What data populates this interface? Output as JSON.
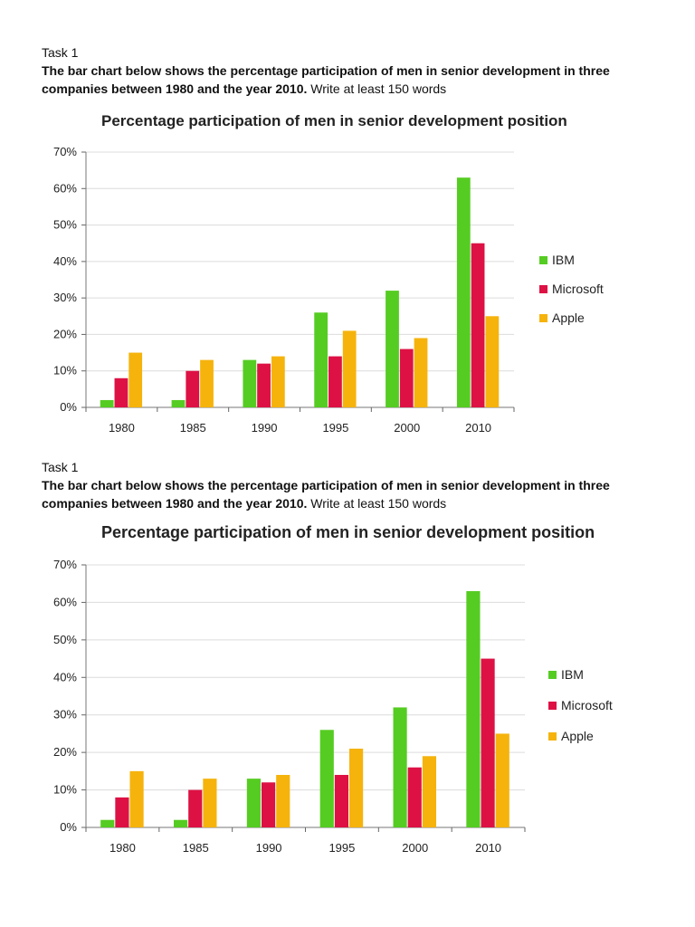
{
  "tasks": [
    {
      "label": "Task 1",
      "prompt_bold": "The bar chart below shows the percentage participation of men in senior development in three companies between 1980 and the year 2010.",
      "prompt_rest": " Write at least 150 words"
    },
    {
      "label": "Task 1",
      "prompt_bold": "The bar chart below shows the percentage participation of men in senior development in three companies between 1980 and the year 2010.",
      "prompt_rest": " Write at least 150 words"
    }
  ],
  "chart_data": [
    {
      "type": "bar",
      "title": "Percentage participation of men in senior development position",
      "categories": [
        "1980",
        "1985",
        "1990",
        "1995",
        "2000",
        "2010"
      ],
      "series": [
        {
          "name": "IBM",
          "color": "#55cc22",
          "values": [
            2,
            2,
            13,
            26,
            32,
            63
          ]
        },
        {
          "name": "Microsoft",
          "color": "#dd1144",
          "values": [
            8,
            10,
            12,
            14,
            16,
            45
          ]
        },
        {
          "name": "Apple",
          "color": "#f5b30c",
          "values": [
            15,
            13,
            14,
            21,
            19,
            25
          ]
        }
      ],
      "yticks": [
        "0%",
        "10%",
        "20%",
        "30%",
        "40%",
        "50%",
        "60%",
        "70%"
      ],
      "ylim": [
        0,
        70
      ],
      "grid": true,
      "legend": "right"
    },
    {
      "type": "bar",
      "title": "Percentage participation of men in senior development position",
      "categories": [
        "1980",
        "1985",
        "1990",
        "1995",
        "2000",
        "2010"
      ],
      "series": [
        {
          "name": "IBM",
          "color": "#55cc22",
          "values": [
            2,
            2,
            13,
            26,
            32,
            63
          ]
        },
        {
          "name": "Microsoft",
          "color": "#dd1144",
          "values": [
            8,
            10,
            12,
            14,
            16,
            45
          ]
        },
        {
          "name": "Apple",
          "color": "#f5b30c",
          "values": [
            15,
            13,
            14,
            21,
            19,
            25
          ]
        }
      ],
      "yticks": [
        "0%",
        "10%",
        "20%",
        "30%",
        "40%",
        "50%",
        "60%",
        "70%"
      ],
      "ylim": [
        0,
        70
      ],
      "grid": true,
      "legend": "right"
    }
  ]
}
